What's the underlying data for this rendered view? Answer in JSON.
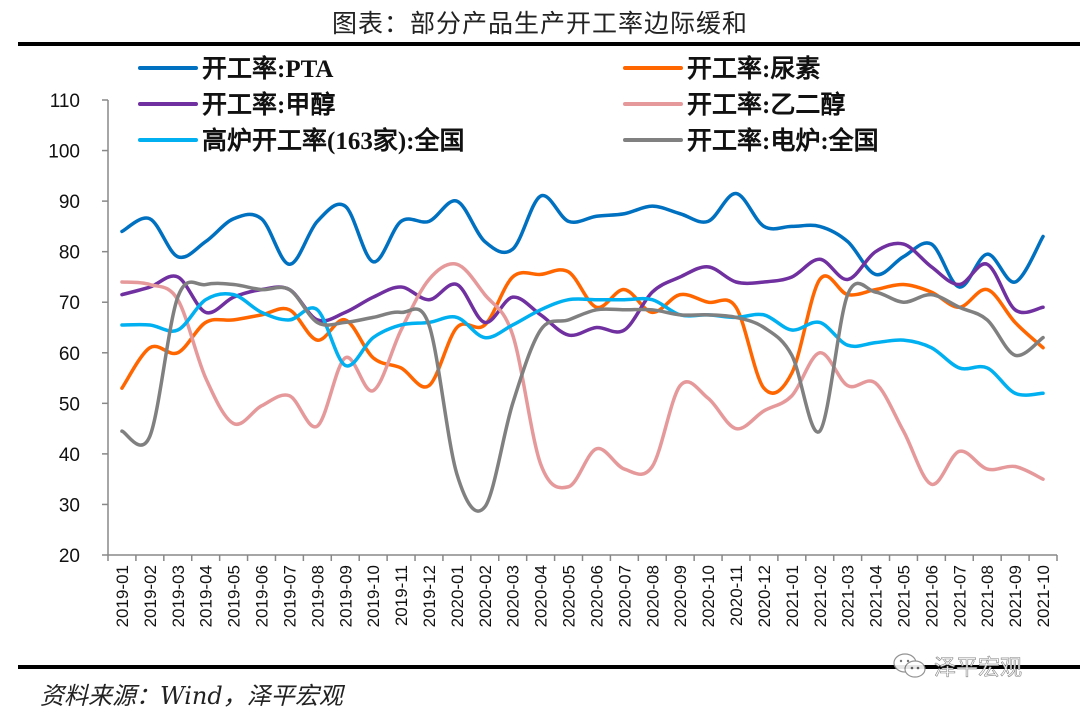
{
  "header": {
    "title": "图表：部分产品生产开工率边际缓和"
  },
  "footer": {
    "source": "资料来源：Wind，泽平宏观",
    "watermark": "泽平宏观"
  },
  "chart_data": {
    "type": "line",
    "title": "图表：部分产品生产开工率边际缓和",
    "xlabel": "",
    "ylabel": "",
    "ylim": [
      20,
      110
    ],
    "yticks": [
      20,
      30,
      40,
      50,
      60,
      70,
      80,
      90,
      100,
      110
    ],
    "grid": false,
    "legend_position": "top",
    "categories": [
      "2019-01",
      "2019-02",
      "2019-03",
      "2019-04",
      "2019-05",
      "2019-06",
      "2019-07",
      "2019-08",
      "2019-09",
      "2019-10",
      "2019-11",
      "2019-12",
      "2020-01",
      "2020-02",
      "2020-03",
      "2020-04",
      "2020-05",
      "2020-06",
      "2020-07",
      "2020-08",
      "2020-09",
      "2020-10",
      "2020-11",
      "2020-12",
      "2021-01",
      "2021-02",
      "2021-03",
      "2021-04",
      "2021-05",
      "2021-06",
      "2021-07",
      "2021-08",
      "2021-09",
      "2021-10"
    ],
    "series": [
      {
        "name": "开工率:PTA",
        "color": "#0070C0",
        "values": [
          84,
          86.5,
          79,
          82,
          86.5,
          86.5,
          77.5,
          86,
          89,
          78,
          86,
          86,
          90,
          82,
          80.5,
          91,
          86,
          87,
          87.5,
          89,
          87.5,
          86,
          91.5,
          85,
          85,
          85,
          82,
          75.5,
          79,
          81.5,
          73,
          79.5,
          74,
          83
        ]
      },
      {
        "name": "开工率:尿素",
        "color": "#FF6600",
        "values": [
          53,
          61,
          60,
          66,
          66.5,
          67.5,
          68.5,
          62.5,
          66.5,
          59,
          57,
          53.5,
          65,
          65.5,
          75,
          75.5,
          76,
          69,
          72.5,
          68,
          71.5,
          70,
          69,
          53,
          56,
          74.5,
          71.5,
          72.5,
          73.5,
          72,
          69,
          72.5,
          66,
          61
        ]
      },
      {
        "name": "开工率:甲醇",
        "color": "#7030A0",
        "values": [
          71.5,
          73,
          75,
          68,
          71,
          72.5,
          72.5,
          66.5,
          68,
          71,
          73,
          70.5,
          73.5,
          66,
          71,
          67.5,
          63.5,
          65,
          64.5,
          72,
          75,
          77,
          74,
          74,
          75,
          78.5,
          74.5,
          80,
          81.5,
          77,
          73.5,
          77.5,
          68.5,
          69
        ]
      },
      {
        "name": "开工率:乙二醇",
        "color": "#E6999A",
        "values": [
          74,
          73.5,
          70.5,
          55,
          46,
          49.5,
          51.5,
          45.5,
          59,
          52.5,
          64.5,
          74.5,
          77.5,
          71.5,
          63.5,
          38,
          33.5,
          41,
          37,
          37.5,
          53.5,
          51,
          45,
          48.5,
          51.5,
          60,
          53.5,
          54,
          44.5,
          34,
          40.5,
          37,
          37.5,
          35
        ]
      },
      {
        "name": "高炉开工率(163家):全国",
        "color": "#00B0F0",
        "values": [
          65.5,
          65.5,
          64.5,
          70.5,
          71.5,
          68,
          66.5,
          68.5,
          57.5,
          63,
          65.5,
          66,
          67,
          63,
          65.5,
          68.5,
          70.5,
          70.5,
          70.5,
          70.5,
          67.5,
          67.5,
          67,
          67.5,
          64.5,
          66,
          61.5,
          62,
          62.5,
          61,
          57,
          57,
          52,
          52
        ]
      },
      {
        "name": "开工率:电炉:全国",
        "color": "#808080",
        "values": [
          44.5,
          43.5,
          71,
          73.5,
          73.5,
          72.5,
          72.5,
          66,
          66,
          67,
          68,
          65.5,
          36,
          29.5,
          50,
          64.5,
          66.5,
          68.5,
          68.5,
          68.5,
          67.5,
          67.5,
          67,
          65,
          59.5,
          44.5,
          71.5,
          72,
          70,
          71.5,
          69,
          66.5,
          59.5,
          63
        ]
      }
    ]
  }
}
